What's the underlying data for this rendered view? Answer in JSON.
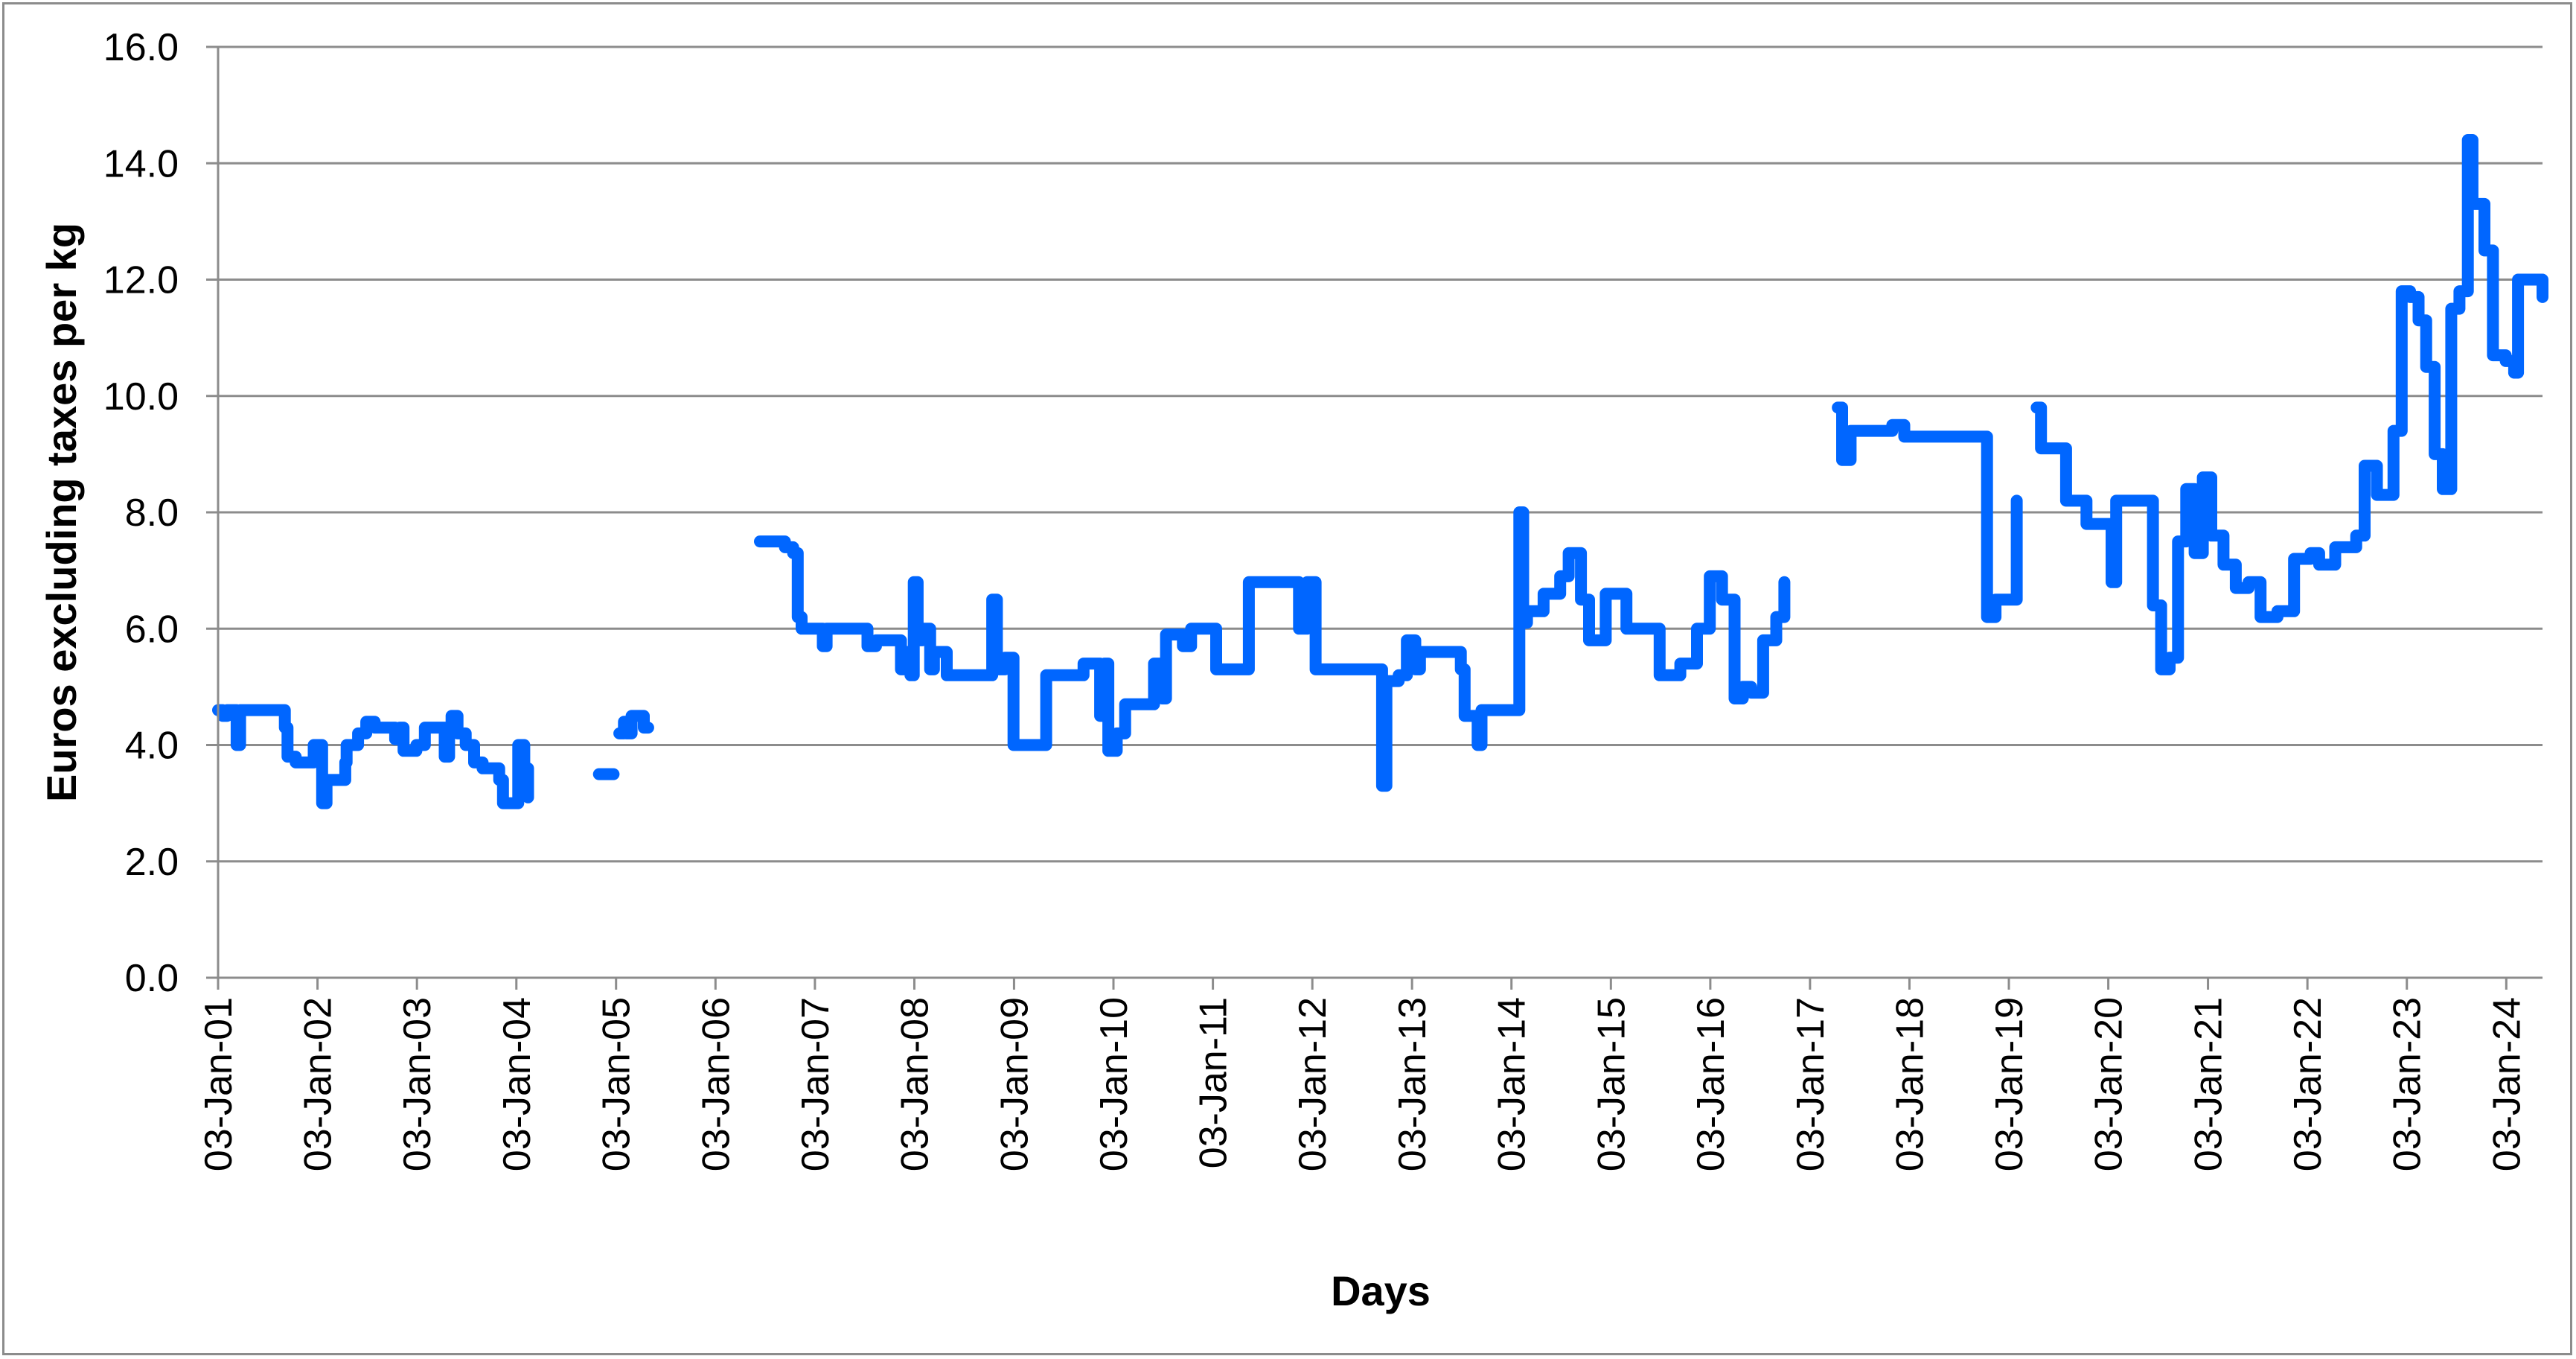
{
  "chart_data": {
    "type": "line",
    "title": "",
    "xlabel": "Days",
    "ylabel": "Euros excluding taxes per kg",
    "ylim": [
      0,
      16
    ],
    "yticks": [
      0,
      2,
      4,
      6,
      8,
      10,
      12,
      14,
      16
    ],
    "ytick_labels": [
      "0.0",
      "2.0",
      "4.0",
      "6.0",
      "8.0",
      "10.0",
      "12.0",
      "14.0",
      "16.0"
    ],
    "x_range": [
      "2001-01-03",
      "2024-05-15"
    ],
    "xtick_dates": [
      "2001-01-03",
      "2002-01-03",
      "2003-01-03",
      "2004-01-03",
      "2005-01-03",
      "2006-01-03",
      "2007-01-03",
      "2008-01-03",
      "2009-01-03",
      "2010-01-03",
      "2011-01-03",
      "2012-01-03",
      "2013-01-03",
      "2014-01-03",
      "2015-01-03",
      "2016-01-03",
      "2017-01-03",
      "2018-01-03",
      "2019-01-03",
      "2020-01-03",
      "2021-01-03",
      "2022-01-03",
      "2023-01-03",
      "2024-01-03"
    ],
    "xtick_labels": [
      "03-Jan-01",
      "03-Jan-02",
      "03-Jan-03",
      "03-Jan-04",
      "03-Jan-05",
      "03-Jan-06",
      "03-Jan-07",
      "03-Jan-08",
      "03-Jan-09",
      "03-Jan-10",
      "03-Jan-11",
      "03-Jan-12",
      "03-Jan-13",
      "03-Jan-14",
      "03-Jan-15",
      "03-Jan-16",
      "03-Jan-17",
      "03-Jan-18",
      "03-Jan-19",
      "03-Jan-20",
      "03-Jan-21",
      "03-Jan-22",
      "03-Jan-23",
      "03-Jan-24"
    ],
    "grid": "horizontal",
    "legend": "none",
    "series": [
      {
        "color": "#0066ff",
        "segments": [
          [
            [
              "2001-01-03",
              4.6
            ],
            [
              "2001-01-20",
              4.5
            ],
            [
              "2001-02-05",
              4.6
            ],
            [
              "2001-03-10",
              4.6
            ],
            [
              "2001-03-12",
              4.0
            ],
            [
              "2001-03-25",
              4.6
            ],
            [
              "2001-06-01",
              4.6
            ],
            [
              "2001-08-20",
              4.6
            ],
            [
              "2001-09-05",
              4.3
            ],
            [
              "2001-09-15",
              3.8
            ],
            [
              "2001-10-15",
              3.7
            ],
            [
              "2001-12-01",
              3.7
            ],
            [
              "2001-12-20",
              4.0
            ],
            [
              "2002-01-10",
              4.0
            ],
            [
              "2002-01-20",
              3.0
            ],
            [
              "2002-02-05",
              3.4
            ],
            [
              "2002-04-01",
              3.4
            ],
            [
              "2002-04-15",
              3.7
            ],
            [
              "2002-04-20",
              4.0
            ],
            [
              "2002-06-01",
              4.2
            ],
            [
              "2002-07-01",
              4.4
            ],
            [
              "2002-08-01",
              4.3
            ],
            [
              "2002-10-01",
              4.3
            ],
            [
              "2002-10-15",
              4.1
            ],
            [
              "2002-11-01",
              4.3
            ],
            [
              "2002-11-15",
              3.9
            ],
            [
              "2003-01-01",
              4.0
            ],
            [
              "2003-02-01",
              4.3
            ],
            [
              "2003-04-01",
              4.3
            ],
            [
              "2003-04-15",
              3.8
            ],
            [
              "2003-05-01",
              4.3
            ],
            [
              "2003-05-10",
              4.5
            ],
            [
              "2003-06-01",
              4.2
            ],
            [
              "2003-07-01",
              4.0
            ],
            [
              "2003-08-01",
              3.7
            ],
            [
              "2003-09-01",
              3.6
            ],
            [
              "2003-10-15",
              3.6
            ],
            [
              "2003-11-01",
              3.4
            ],
            [
              "2003-11-15",
              3.0
            ],
            [
              "2004-01-01",
              3.0
            ],
            [
              "2004-01-10",
              4.0
            ],
            [
              "2004-02-01",
              3.6
            ],
            [
              "2004-02-15",
              3.1
            ]
          ],
          [
            [
              "2004-11-01",
              3.5
            ],
            [
              "2004-12-25",
              3.5
            ]
          ],
          [
            [
              "2005-01-15",
              4.2
            ],
            [
              "2005-02-01",
              4.4
            ],
            [
              "2005-02-10",
              4.2
            ],
            [
              "2005-03-01",
              4.5
            ],
            [
              "2005-04-01",
              4.5
            ],
            [
              "2005-04-15",
              4.3
            ],
            [
              "2005-05-01",
              4.3
            ]
          ],
          [
            [
              "2006-06-15",
              7.5
            ],
            [
              "2006-09-01",
              7.5
            ],
            [
              "2006-09-15",
              7.4
            ],
            [
              "2006-10-15",
              7.3
            ],
            [
              "2006-11-01",
              6.2
            ],
            [
              "2006-11-15",
              6.0
            ],
            [
              "2007-01-10",
              6.0
            ],
            [
              "2007-02-01",
              5.7
            ],
            [
              "2007-02-15",
              6.0
            ],
            [
              "2007-07-01",
              6.0
            ],
            [
              "2007-07-15",
              5.7
            ],
            [
              "2007-08-15",
              5.8
            ],
            [
              "2007-11-01",
              5.8
            ],
            [
              "2007-11-15",
              5.3
            ],
            [
              "2007-12-01",
              5.6
            ],
            [
              "2007-12-20",
              5.2
            ],
            [
              "2008-01-01",
              6.8
            ],
            [
              "2008-01-15",
              5.8
            ],
            [
              "2008-02-01",
              6.0
            ],
            [
              "2008-03-01",
              5.3
            ],
            [
              "2008-03-15",
              5.6
            ],
            [
              "2008-05-01",
              5.2
            ],
            [
              "2008-10-01",
              5.2
            ],
            [
              "2008-10-15",
              6.5
            ],
            [
              "2008-11-01",
              5.3
            ],
            [
              "2008-12-01",
              5.5
            ],
            [
              "2009-01-01",
              4.0
            ],
            [
              "2009-04-01",
              4.0
            ],
            [
              "2009-05-01",
              5.2
            ],
            [
              "2009-09-01",
              5.2
            ],
            [
              "2009-09-15",
              5.4
            ],
            [
              "2009-11-01",
              5.4
            ],
            [
              "2009-11-15",
              4.5
            ],
            [
              "2009-12-01",
              5.4
            ],
            [
              "2009-12-15",
              3.9
            ],
            [
              "2010-01-15",
              4.2
            ],
            [
              "2010-02-15",
              4.7
            ],
            [
              "2010-05-15",
              4.7
            ],
            [
              "2010-06-01",
              5.4
            ],
            [
              "2010-07-01",
              4.8
            ],
            [
              "2010-07-15",
              5.9
            ],
            [
              "2010-09-15",
              5.7
            ],
            [
              "2010-10-15",
              6.0
            ],
            [
              "2011-01-01",
              6.0
            ],
            [
              "2011-01-15",
              5.3
            ],
            [
              "2011-05-01",
              5.3
            ],
            [
              "2011-05-15",
              6.8
            ],
            [
              "2011-11-01",
              6.8
            ],
            [
              "2011-11-15",
              6.0
            ],
            [
              "2011-12-15",
              6.8
            ],
            [
              "2012-01-15",
              5.3
            ],
            [
              "2012-09-01",
              5.3
            ],
            [
              "2012-09-15",
              3.3
            ],
            [
              "2012-10-01",
              5.1
            ],
            [
              "2012-11-15",
              5.2
            ],
            [
              "2012-12-15",
              5.8
            ],
            [
              "2013-01-15",
              5.3
            ],
            [
              "2013-02-01",
              5.6
            ],
            [
              "2013-07-01",
              5.3
            ],
            [
              "2013-07-15",
              4.5
            ],
            [
              "2013-09-01",
              4.0
            ],
            [
              "2013-09-15",
              4.6
            ],
            [
              "2014-01-01",
              4.6
            ],
            [
              "2014-02-01",
              8.0
            ],
            [
              "2014-02-15",
              6.1
            ],
            [
              "2014-03-01",
              6.3
            ],
            [
              "2014-05-01",
              6.6
            ],
            [
              "2014-07-01",
              6.9
            ],
            [
              "2014-08-01",
              7.3
            ],
            [
              "2014-09-15",
              6.5
            ],
            [
              "2014-10-15",
              5.8
            ],
            [
              "2014-12-15",
              6.6
            ],
            [
              "2015-03-01",
              6.0
            ],
            [
              "2015-07-01",
              5.2
            ],
            [
              "2015-09-15",
              5.4
            ],
            [
              "2015-11-15",
              6.0
            ],
            [
              "2016-01-01",
              6.9
            ],
            [
              "2016-02-15",
              6.5
            ],
            [
              "2016-04-01",
              4.8
            ],
            [
              "2016-05-01",
              5.0
            ],
            [
              "2016-06-01",
              4.9
            ],
            [
              "2016-07-15",
              5.8
            ],
            [
              "2016-09-01",
              6.2
            ],
            [
              "2016-10-01",
              6.8
            ]
          ],
          [
            [
              "2017-04-15",
              9.8
            ],
            [
              "2017-05-01",
              8.9
            ],
            [
              "2017-06-01",
              9.4
            ],
            [
              "2017-09-01",
              9.4
            ],
            [
              "2017-11-01",
              9.5
            ],
            [
              "2017-12-15",
              9.3
            ],
            [
              "2018-10-01",
              9.3
            ],
            [
              "2018-10-15",
              6.2
            ],
            [
              "2018-11-15",
              6.5
            ],
            [
              "2019-01-15",
              6.5
            ],
            [
              "2019-02-01",
              8.2
            ]
          ],
          [
            [
              "2019-04-15",
              9.8
            ],
            [
              "2019-05-01",
              9.1
            ],
            [
              "2019-06-01",
              9.1
            ],
            [
              "2019-08-01",
              8.2
            ],
            [
              "2019-10-15",
              7.8
            ],
            [
              "2019-12-15",
              7.8
            ],
            [
              "2020-01-15",
              6.8
            ],
            [
              "2020-02-01",
              8.2
            ],
            [
              "2020-05-01",
              8.2
            ],
            [
              "2020-06-15",
              6.4
            ],
            [
              "2020-07-15",
              5.3
            ],
            [
              "2020-08-15",
              5.5
            ],
            [
              "2020-09-15",
              7.5
            ],
            [
              "2020-10-15",
              8.4
            ],
            [
              "2020-11-15",
              7.3
            ],
            [
              "2020-12-15",
              8.6
            ],
            [
              "2021-01-15",
              7.6
            ],
            [
              "2021-03-01",
              7.1
            ],
            [
              "2021-04-15",
              6.7
            ],
            [
              "2021-06-01",
              6.8
            ],
            [
              "2021-07-15",
              6.2
            ],
            [
              "2021-09-15",
              6.3
            ],
            [
              "2021-11-15",
              7.2
            ],
            [
              "2022-01-15",
              7.3
            ],
            [
              "2022-02-15",
              7.1
            ],
            [
              "2022-04-15",
              7.4
            ],
            [
              "2022-07-01",
              7.6
            ],
            [
              "2022-08-01",
              8.8
            ],
            [
              "2022-09-15",
              8.3
            ],
            [
              "2022-11-15",
              9.4
            ],
            [
              "2022-12-15",
              11.8
            ],
            [
              "2023-01-15",
              11.7
            ],
            [
              "2023-02-15",
              11.3
            ],
            [
              "2023-03-15",
              10.5
            ],
            [
              "2023-04-15",
              9.0
            ],
            [
              "2023-05-15",
              8.4
            ],
            [
              "2023-06-15",
              11.5
            ],
            [
              "2023-07-15",
              11.8
            ],
            [
              "2023-08-15",
              14.4
            ],
            [
              "2023-09-01",
              13.3
            ],
            [
              "2023-10-15",
              12.5
            ],
            [
              "2023-11-15",
              10.7
            ],
            [
              "2024-01-01",
              10.6
            ],
            [
              "2024-02-01",
              10.4
            ],
            [
              "2024-02-15",
              12.0
            ],
            [
              "2024-05-10",
              12.0
            ],
            [
              "2024-05-15",
              11.7
            ]
          ]
        ]
      }
    ]
  }
}
